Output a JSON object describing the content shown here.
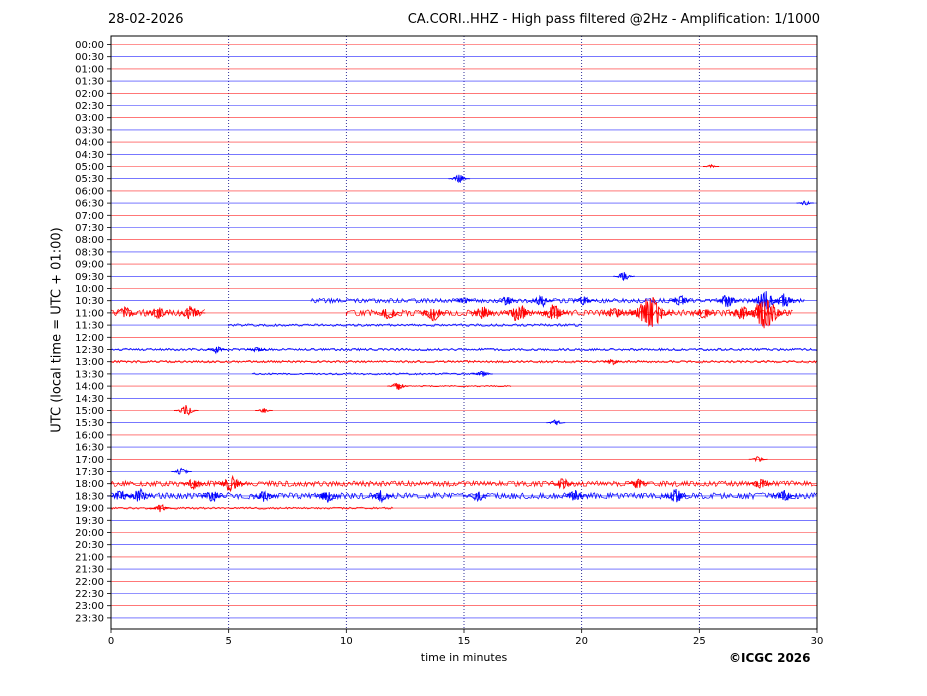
{
  "header": {
    "date": "28-02-2026",
    "title": "CA.CORI..HHZ - High pass filtered @2Hz - Amplification: 1/1000"
  },
  "footer": {
    "copyright": "©ICGC 2026"
  },
  "colors": {
    "trace_a": "#ff0000",
    "trace_b": "#0000ff",
    "gridline": "#000080"
  },
  "chart_data": {
    "type": "line",
    "chart_kind": "helicorder",
    "xlabel": "time in minutes",
    "ylabel": "UTC (local time = UTC + 01:00)",
    "xlim": [
      0,
      30
    ],
    "xticks": [
      0,
      5,
      10,
      15,
      20,
      25,
      30
    ],
    "vertical_gridlines_at": [
      5,
      10,
      15,
      20,
      25
    ],
    "rows": [
      "00:00",
      "00:30",
      "01:00",
      "01:30",
      "02:00",
      "02:30",
      "03:00",
      "03:30",
      "04:00",
      "04:30",
      "05:00",
      "05:30",
      "06:00",
      "06:30",
      "07:00",
      "07:30",
      "08:00",
      "08:30",
      "09:00",
      "09:30",
      "10:00",
      "10:30",
      "11:00",
      "11:30",
      "12:00",
      "12:30",
      "13:00",
      "13:30",
      "14:00",
      "14:30",
      "15:00",
      "15:30",
      "16:00",
      "16:30",
      "17:00",
      "17:30",
      "18:00",
      "18:30",
      "19:00",
      "19:30",
      "20:00",
      "20:30",
      "21:00",
      "21:30",
      "22:00",
      "22:30",
      "23:00",
      "23:30"
    ],
    "row_colors_alternate": [
      "red",
      "blue"
    ],
    "bursts": [
      {
        "row": "05:00",
        "minute": 25.5,
        "amplitude": 0.15
      },
      {
        "row": "05:30",
        "minute": 14.8,
        "amplitude": 0.35
      },
      {
        "row": "06:30",
        "minute": 29.5,
        "amplitude": 0.2
      },
      {
        "row": "09:30",
        "minute": 21.8,
        "amplitude": 0.35
      },
      {
        "row": "10:30",
        "minute": 15.0,
        "amplitude": 0.35
      },
      {
        "row": "10:30",
        "minute": 16.8,
        "amplitude": 0.4
      },
      {
        "row": "10:30",
        "minute": 18.3,
        "amplitude": 0.5
      },
      {
        "row": "10:30",
        "minute": 20.1,
        "amplitude": 0.4
      },
      {
        "row": "10:30",
        "minute": 24.2,
        "amplitude": 0.5
      },
      {
        "row": "10:30",
        "minute": 26.2,
        "amplitude": 0.55
      },
      {
        "row": "10:30",
        "minute": 27.8,
        "amplitude": 0.8
      },
      {
        "row": "10:30",
        "minute": 28.6,
        "amplitude": 0.6
      },
      {
        "row": "11:00",
        "minute": 0.6,
        "amplitude": 0.5
      },
      {
        "row": "11:00",
        "minute": 2.0,
        "amplitude": 0.55
      },
      {
        "row": "11:00",
        "minute": 3.4,
        "amplitude": 0.6
      },
      {
        "row": "11:00",
        "minute": 11.8,
        "amplitude": 0.55
      },
      {
        "row": "11:00",
        "minute": 13.7,
        "amplitude": 0.65
      },
      {
        "row": "11:00",
        "minute": 15.8,
        "amplitude": 0.55
      },
      {
        "row": "11:00",
        "minute": 17.3,
        "amplitude": 0.8
      },
      {
        "row": "11:00",
        "minute": 18.8,
        "amplitude": 0.7
      },
      {
        "row": "11:00",
        "minute": 21.4,
        "amplitude": 0.5
      },
      {
        "row": "11:00",
        "minute": 22.9,
        "amplitude": 1.4
      },
      {
        "row": "11:00",
        "minute": 25.2,
        "amplitude": 0.5
      },
      {
        "row": "11:00",
        "minute": 26.8,
        "amplitude": 0.6
      },
      {
        "row": "11:00",
        "minute": 27.8,
        "amplitude": 1.3
      },
      {
        "row": "12:30",
        "minute": 4.5,
        "amplitude": 0.3
      },
      {
        "row": "12:30",
        "minute": 6.2,
        "amplitude": 0.25
      },
      {
        "row": "13:00",
        "minute": 21.3,
        "amplitude": 0.25
      },
      {
        "row": "13:30",
        "minute": 15.8,
        "amplitude": 0.3
      },
      {
        "row": "14:00",
        "minute": 12.2,
        "amplitude": 0.35
      },
      {
        "row": "15:00",
        "minute": 3.2,
        "amplitude": 0.45
      },
      {
        "row": "15:00",
        "minute": 6.5,
        "amplitude": 0.2
      },
      {
        "row": "15:30",
        "minute": 18.9,
        "amplitude": 0.25
      },
      {
        "row": "17:00",
        "minute": 27.5,
        "amplitude": 0.25
      },
      {
        "row": "17:30",
        "minute": 3.0,
        "amplitude": 0.3
      },
      {
        "row": "18:00",
        "minute": 3.5,
        "amplitude": 0.45
      },
      {
        "row": "18:00",
        "minute": 5.1,
        "amplitude": 0.7
      },
      {
        "row": "18:00",
        "minute": 19.2,
        "amplitude": 0.45
      },
      {
        "row": "18:00",
        "minute": 22.4,
        "amplitude": 0.4
      },
      {
        "row": "18:00",
        "minute": 27.6,
        "amplitude": 0.5
      },
      {
        "row": "18:30",
        "minute": 0.4,
        "amplitude": 0.5
      },
      {
        "row": "18:30",
        "minute": 1.2,
        "amplitude": 0.6
      },
      {
        "row": "18:30",
        "minute": 4.3,
        "amplitude": 0.55
      },
      {
        "row": "18:30",
        "minute": 6.5,
        "amplitude": 0.5
      },
      {
        "row": "18:30",
        "minute": 9.2,
        "amplitude": 0.55
      },
      {
        "row": "18:30",
        "minute": 11.5,
        "amplitude": 0.5
      },
      {
        "row": "18:30",
        "minute": 15.6,
        "amplitude": 0.45
      },
      {
        "row": "18:30",
        "minute": 19.7,
        "amplitude": 0.5
      },
      {
        "row": "18:30",
        "minute": 24.0,
        "amplitude": 0.6
      },
      {
        "row": "18:30",
        "minute": 28.6,
        "amplitude": 0.55
      },
      {
        "row": "19:00",
        "minute": 2.1,
        "amplitude": 0.35
      }
    ],
    "noisy_segments": [
      {
        "row": "10:30",
        "from": 8.5,
        "to": 29.5,
        "amplitude": 0.18
      },
      {
        "row": "11:00",
        "from": 0.0,
        "to": 4.0,
        "amplitude": 0.3
      },
      {
        "row": "11:00",
        "from": 10.0,
        "to": 29.0,
        "amplitude": 0.25
      },
      {
        "row": "11:30",
        "from": 5.0,
        "to": 20.0,
        "amplitude": 0.1
      },
      {
        "row": "12:30",
        "from": 0.0,
        "to": 30.0,
        "amplitude": 0.1
      },
      {
        "row": "13:00",
        "from": 0.0,
        "to": 30.0,
        "amplitude": 0.1
      },
      {
        "row": "13:30",
        "from": 6.0,
        "to": 16.0,
        "amplitude": 0.08
      },
      {
        "row": "14:00",
        "from": 12.0,
        "to": 17.0,
        "amplitude": 0.06
      },
      {
        "row": "18:00",
        "from": 0.0,
        "to": 30.0,
        "amplitude": 0.22
      },
      {
        "row": "18:30",
        "from": 0.0,
        "to": 30.0,
        "amplitude": 0.25
      },
      {
        "row": "19:00",
        "from": 0.0,
        "to": 12.0,
        "amplitude": 0.08
      }
    ]
  }
}
